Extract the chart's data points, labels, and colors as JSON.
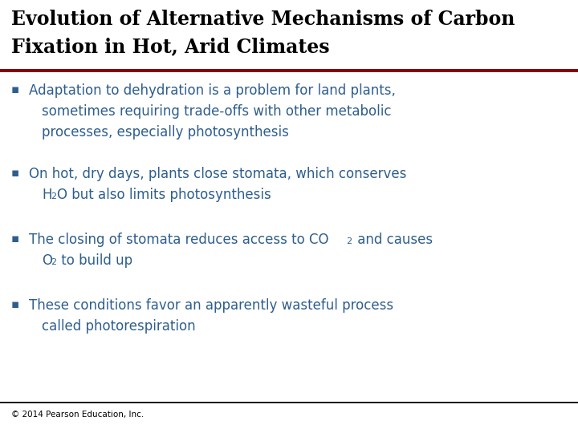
{
  "title_line1": "Evolution of Alternative Mechanisms of Carbon",
  "title_line2": "Fixation in Hot, Arid Climates",
  "title_color": "#000000",
  "title_fontsize": 17,
  "title_font": "serif",
  "red_line_color": "#8B0000",
  "black_line_color": "#1a1a1a",
  "bullet_color": "#2E5E8E",
  "text_color": "#2E5E8E",
  "background_color": "#FFFFFF",
  "footer_text": "© 2014 Pearson Education, Inc.",
  "footer_fontsize": 7.5,
  "bullet_fs": 12,
  "sub_fs": 8
}
